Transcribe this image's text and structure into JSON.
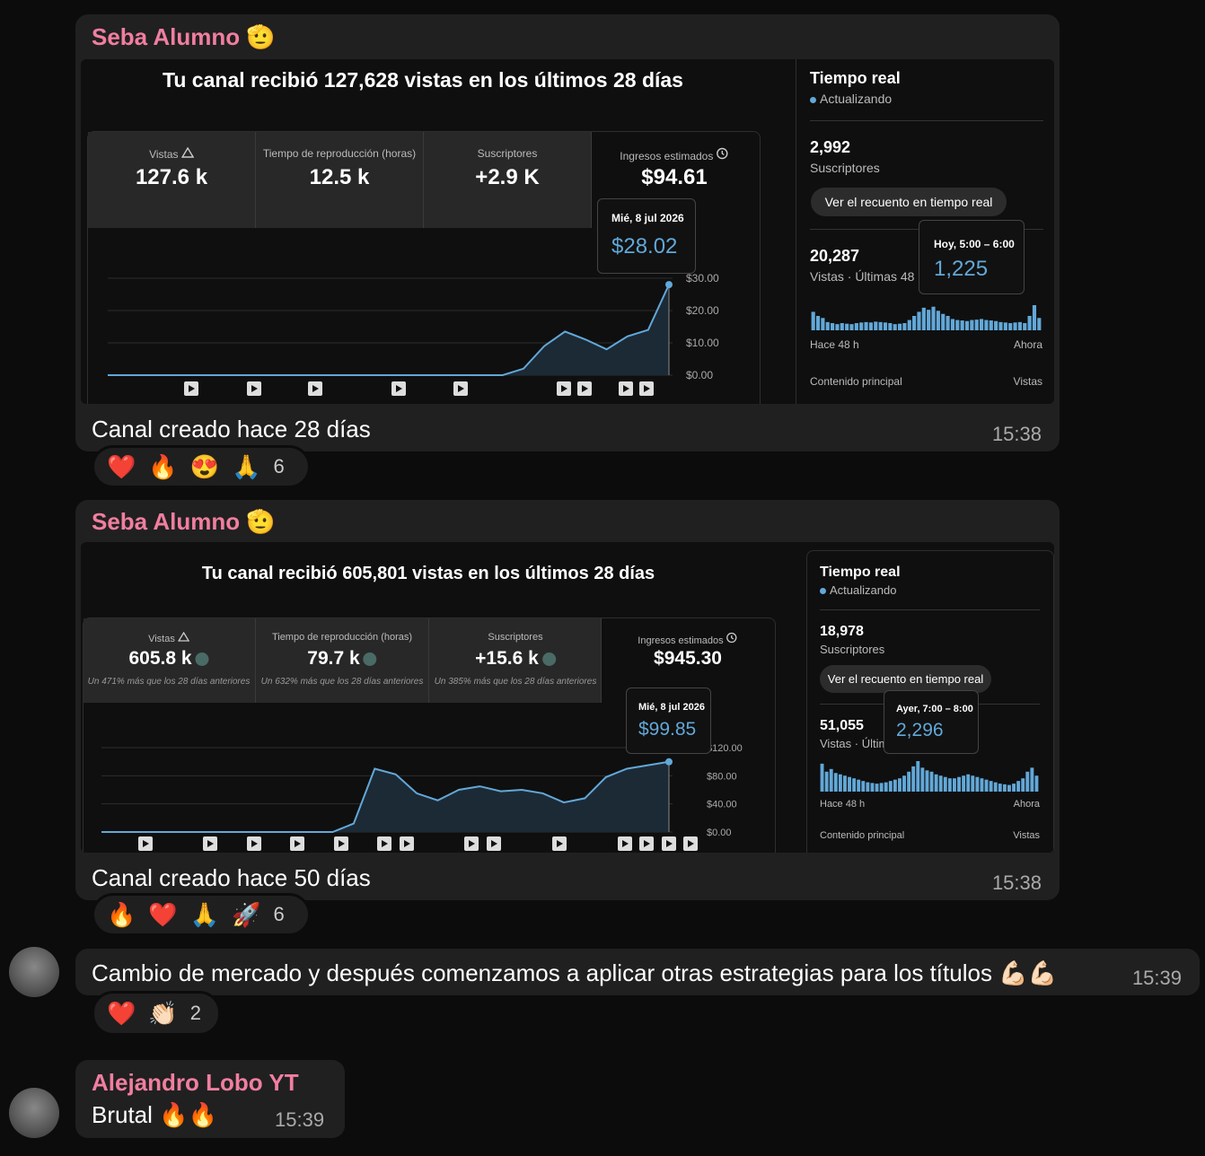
{
  "messages": [
    {
      "sender": "Seba Alumno 🫡",
      "caption": "Canal creado hace 28 días",
      "time": "15:38",
      "reactions": [
        "❤️",
        "🔥",
        "😍",
        "🙏"
      ],
      "reaction_count": 6,
      "dashboard": {
        "title": "Tu canal recibió 127,628 vistas en los últimos 28 días",
        "stats": [
          {
            "label": "Vistas",
            "value": "127.6 k"
          },
          {
            "label": "Tiempo de reproducción (horas)",
            "value": "12.5 k"
          },
          {
            "label": "Suscriptores",
            "value": "+2.9 K"
          },
          {
            "label": "Ingresos estimados",
            "value": "$94.61"
          }
        ],
        "tooltip": {
          "date": "Mié, 8 jul 2026",
          "value": "$28.02"
        },
        "chart": {
          "values": [
            0,
            0,
            0,
            0,
            0,
            0,
            0,
            0,
            0,
            0,
            0,
            0,
            0,
            0,
            0,
            0,
            0,
            0,
            0,
            0,
            2,
            9,
            13.5,
            11,
            8,
            12,
            14,
            28.02
          ],
          "ylim": [
            0,
            30
          ],
          "yticks": [
            {
              "value": 0,
              "label": "$0.00"
            },
            {
              "value": 10,
              "label": "$10.00"
            },
            {
              "value": 20,
              "label": "$20.00"
            },
            {
              "value": 30,
              "label": "$30.00"
            }
          ]
        },
        "realtime": {
          "title": "Tiempo real",
          "status": "Actualizando",
          "subscribers": "2,992",
          "subscribers_label": "Suscriptores",
          "button": "Ver el recuento en tiempo real",
          "views": "20,287",
          "views_label": "Vistas · Últimas 48",
          "tooltip": {
            "time": "Hoy, 5:00 – 6:00",
            "value": "1,225"
          },
          "bars": [
            900,
            700,
            600,
            400,
            350,
            300,
            350,
            320,
            300,
            350,
            380,
            400,
            380,
            420,
            400,
            380,
            350,
            300,
            320,
            350,
            500,
            700,
            900,
            1100,
            1000,
            1150,
            950,
            800,
            700,
            550,
            500,
            480,
            450,
            500,
            520,
            550,
            500,
            480,
            450,
            400,
            380,
            350,
            380,
            400,
            350,
            700,
            1225,
            600
          ],
          "start": "Hace 48 h",
          "end": "Ahora",
          "footer_left": "Contenido principal",
          "footer_right": "Vistas"
        }
      }
    },
    {
      "sender": "Seba Alumno 🫡",
      "caption": "Canal creado hace 50 días",
      "time": "15:38",
      "reactions": [
        "🔥",
        "❤️",
        "🙏",
        "🚀"
      ],
      "reaction_count": 6,
      "dashboard": {
        "title": "Tu canal recibió 605,801 vistas en los últimos 28 días",
        "stats": [
          {
            "label": "Vistas",
            "value": "605.8 k",
            "note": "Un 471% más que los 28 días anteriores"
          },
          {
            "label": "Tiempo de reproducción (horas)",
            "value": "79.7 k",
            "note": "Un 632% más que los 28 días anteriores"
          },
          {
            "label": "Suscriptores",
            "value": "+15.6 k",
            "note": "Un 385% más que los 28 días anteriores"
          },
          {
            "label": "Ingresos estimados",
            "value": "$945.30"
          }
        ],
        "tooltip": {
          "date": "Mié, 8 jul 2026",
          "value": "$99.85"
        },
        "chart": {
          "values": [
            0,
            0,
            0,
            0,
            0,
            0,
            0,
            0,
            0,
            0,
            0,
            0,
            12,
            90,
            82,
            55,
            45,
            60,
            65,
            58,
            60,
            55,
            42,
            48,
            78,
            90,
            95,
            99.85
          ],
          "ylim": [
            0,
            120
          ],
          "yticks": [
            {
              "value": 0,
              "label": "$0.00"
            },
            {
              "value": 40,
              "label": "$40.00"
            },
            {
              "value": 80,
              "label": "$80.00"
            },
            {
              "value": 120,
              "label": "$120.00"
            }
          ]
        },
        "realtime": {
          "title": "Tiempo real",
          "status": "Actualizando",
          "subscribers": "18,978",
          "subscribers_label": "Suscriptores",
          "button": "Ver el recuento en tiempo real",
          "views": "51,055",
          "views_label": "Vistas · Últim",
          "tooltip": {
            "time": "Ayer, 7:00 – 8:00",
            "value": "2,296"
          },
          "bars": [
            2100,
            1500,
            1700,
            1400,
            1300,
            1200,
            1100,
            1000,
            900,
            800,
            700,
            650,
            600,
            650,
            700,
            800,
            900,
            1000,
            1200,
            1500,
            1900,
            2296,
            1800,
            1600,
            1500,
            1300,
            1200,
            1100,
            1000,
            1000,
            1100,
            1200,
            1300,
            1200,
            1100,
            1000,
            900,
            800,
            700,
            600,
            550,
            500,
            600,
            800,
            1000,
            1500,
            1800,
            1200
          ],
          "start": "Hace 48 h",
          "end": "Ahora",
          "footer_left": "Contenido principal",
          "footer_right": "Vistas"
        }
      }
    },
    {
      "text": "Cambio de mercado y después comenzamos a aplicar otras estrategias para los títulos 💪🏻💪🏻",
      "time": "15:39",
      "reactions": [
        "❤️",
        "👏🏻"
      ],
      "reaction_count": 2
    },
    {
      "sender": "Alejandro Lobo YT",
      "text": "Brutal 🔥🔥",
      "time": "15:39"
    }
  ]
}
